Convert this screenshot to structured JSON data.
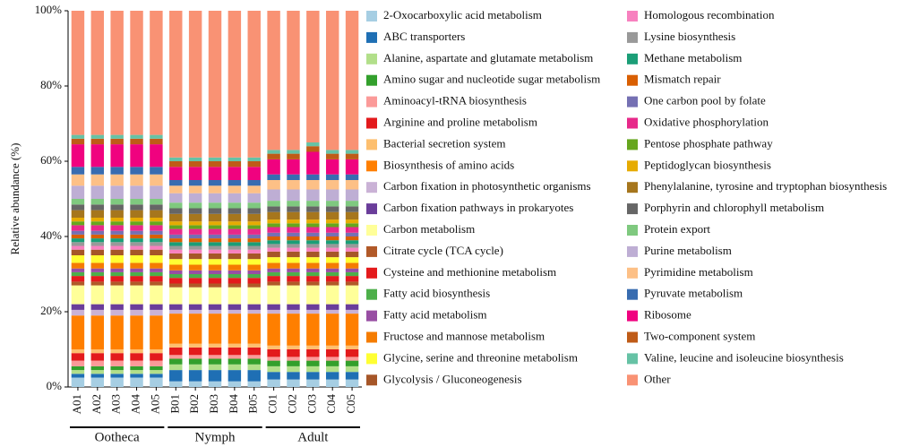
{
  "chart_data": {
    "type": "stacked_bar",
    "y_label": "Relative abundance (%)",
    "categories": [
      "A01",
      "A02",
      "A03",
      "A04",
      "A05",
      "B01",
      "B02",
      "B03",
      "B04",
      "B05",
      "C01",
      "C02",
      "C03",
      "C04",
      "C05"
    ],
    "groups": [
      "Ootheca",
      "Ootheca",
      "Ootheca",
      "Ootheca",
      "Ootheca",
      "Nymph",
      "Nymph",
      "Nymph",
      "Nymph",
      "Nymph",
      "Adult",
      "Adult",
      "Adult",
      "Adult",
      "Adult"
    ],
    "ylim": [
      0,
      100
    ],
    "yticks": [
      {
        "value": 0,
        "label": "0%"
      },
      {
        "value": 20,
        "label": "20%"
      },
      {
        "value": 40,
        "label": "40%"
      },
      {
        "value": 60,
        "label": "60%"
      },
      {
        "value": 80,
        "label": "80%"
      },
      {
        "value": 100,
        "label": "100%"
      }
    ],
    "series": [
      {
        "name": "2-Oxocarboxylic acid metabolism",
        "color": "#a6cee3",
        "values": [
          2.5,
          2.5,
          2.5,
          2.5,
          2.5,
          1.5,
          1.5,
          1.5,
          1.5,
          1.5,
          2,
          2,
          2,
          2,
          2
        ]
      },
      {
        "name": "ABC transporters",
        "color": "#1f6fb4",
        "values": [
          1,
          1,
          1,
          1,
          1,
          3,
          3,
          3,
          3,
          3,
          2,
          2,
          2,
          2,
          2
        ]
      },
      {
        "name": "Alanine, aspartate and glutamate metabolism",
        "color": "#b2df8a",
        "values": [
          1,
          1,
          1,
          1,
          1,
          1.5,
          1.5,
          1.5,
          1.5,
          1.5,
          1.5,
          1.5,
          1.5,
          1.5,
          1.5
        ]
      },
      {
        "name": "Amino sugar and nucleotide sugar metabolism",
        "color": "#33a02c",
        "values": [
          1,
          1,
          1,
          1,
          1,
          1.5,
          1.5,
          1.5,
          1.5,
          1.5,
          1.5,
          1.5,
          1.5,
          1.5,
          1.5
        ]
      },
      {
        "name": "Aminoacyl-tRNA biosynthesis",
        "color": "#fb9a99",
        "values": [
          1.5,
          1.5,
          1.5,
          1.5,
          1.5,
          1,
          1,
          1,
          1,
          1,
          1,
          1,
          1,
          1,
          1
        ]
      },
      {
        "name": "Arginine and proline metabolism",
        "color": "#e31a1c",
        "values": [
          2,
          2,
          2,
          2,
          2,
          2,
          2,
          2,
          2,
          2,
          2,
          2,
          2,
          2,
          2
        ]
      },
      {
        "name": "Bacterial secretion system",
        "color": "#fdbf6f",
        "values": [
          1,
          1,
          1,
          1,
          1,
          1,
          1,
          1,
          1,
          1,
          1,
          1,
          1,
          1,
          1
        ]
      },
      {
        "name": "Biosynthesis of amino acids",
        "color": "#ff7f00",
        "values": [
          9,
          9,
          9,
          9,
          9,
          8,
          8,
          8,
          8,
          8,
          8.5,
          8.5,
          8.5,
          8.5,
          8.5
        ]
      },
      {
        "name": "Carbon fixation in photosynthetic organisms",
        "color": "#cab2d6",
        "values": [
          1.5,
          1.5,
          1.5,
          1.5,
          1.5,
          1,
          1,
          1,
          1,
          1,
          1,
          1,
          1,
          1,
          1
        ]
      },
      {
        "name": "Carbon fixation pathways in prokaryotes",
        "color": "#6a3d9a",
        "values": [
          1.5,
          1.5,
          1.5,
          1.5,
          1.5,
          1.5,
          1.5,
          1.5,
          1.5,
          1.5,
          1.5,
          1.5,
          1.5,
          1.5,
          1.5
        ]
      },
      {
        "name": "Carbon metabolism",
        "color": "#ffff99",
        "values": [
          5,
          5,
          5,
          5,
          5,
          4.5,
          4.5,
          4.5,
          4.5,
          4.5,
          5,
          5,
          5,
          5,
          5
        ]
      },
      {
        "name": "Citrate cycle (TCA cycle)",
        "color": "#b15928",
        "values": [
          1,
          1,
          1,
          1,
          1,
          1,
          1,
          1,
          1,
          1,
          1,
          1,
          1,
          1,
          1
        ]
      },
      {
        "name": "Cysteine and methionine metabolism",
        "color": "#e41a1c",
        "values": [
          1.5,
          1.5,
          1.5,
          1.5,
          1.5,
          1.5,
          1.5,
          1.5,
          1.5,
          1.5,
          1.5,
          1.5,
          1.5,
          1.5,
          1.5
        ]
      },
      {
        "name": "Fatty acid biosynthesis",
        "color": "#4daf4a",
        "values": [
          1,
          1,
          1,
          1,
          1,
          1,
          1,
          1,
          1,
          1,
          1,
          1,
          1,
          1,
          1
        ]
      },
      {
        "name": "Fatty acid metabolism",
        "color": "#984ea3",
        "values": [
          1,
          1,
          1,
          1,
          1,
          1,
          1,
          1,
          1,
          1,
          1,
          1,
          1,
          1,
          1
        ]
      },
      {
        "name": "Fructose and mannose metabolism",
        "color": "#f57c00",
        "values": [
          1.5,
          1.5,
          1.5,
          1.5,
          1.5,
          1.5,
          1.5,
          1.5,
          1.5,
          1.5,
          1.5,
          1.5,
          1.5,
          1.5,
          1.5
        ]
      },
      {
        "name": "Glycine, serine and threonine metabolism",
        "color": "#ffff33",
        "values": [
          2,
          2,
          2,
          2,
          2,
          1.5,
          1.5,
          1.5,
          1.5,
          1.5,
          1.5,
          1.5,
          1.5,
          1.5,
          1.5
        ]
      },
      {
        "name": "Glycolysis / Gluconeogenesis",
        "color": "#a65628",
        "values": [
          1.5,
          1.5,
          1.5,
          1.5,
          1.5,
          1.5,
          1.5,
          1.5,
          1.5,
          1.5,
          1.5,
          1.5,
          1.5,
          1.5,
          1.5
        ]
      },
      {
        "name": "Homologous recombination",
        "color": "#f781bf",
        "values": [
          1,
          1,
          1,
          1,
          1,
          1,
          1,
          1,
          1,
          1,
          1,
          1,
          1,
          1,
          1
        ]
      },
      {
        "name": "Lysine biosynthesis",
        "color": "#999999",
        "values": [
          1,
          1,
          1,
          1,
          1,
          1,
          1,
          1,
          1,
          1,
          1,
          1,
          1,
          1,
          1
        ]
      },
      {
        "name": "Methane metabolism",
        "color": "#1b9e77",
        "values": [
          1,
          1,
          1,
          1,
          1,
          1,
          1,
          1,
          1,
          1,
          1,
          1,
          1,
          1,
          1
        ]
      },
      {
        "name": "Mismatch repair",
        "color": "#d95f02",
        "values": [
          1,
          1,
          1,
          1,
          1,
          1,
          1,
          1,
          1,
          1,
          1,
          1,
          1,
          1,
          1
        ]
      },
      {
        "name": "One carbon pool by folate",
        "color": "#7570b3",
        "values": [
          1,
          1,
          1,
          1,
          1,
          1,
          1,
          1,
          1,
          1,
          1,
          1,
          1,
          1,
          1
        ]
      },
      {
        "name": "Oxidative phosphorylation",
        "color": "#e7298a",
        "values": [
          1.5,
          1.5,
          1.5,
          1.5,
          1.5,
          1.5,
          1.5,
          1.5,
          1.5,
          1.5,
          1.5,
          1.5,
          1.5,
          1.5,
          1.5
        ]
      },
      {
        "name": "Pentose phosphate pathway",
        "color": "#66a61e",
        "values": [
          1,
          1,
          1,
          1,
          1,
          1,
          1,
          1,
          1,
          1,
          1,
          1,
          1,
          1,
          1
        ]
      },
      {
        "name": "Peptidoglycan biosynthesis",
        "color": "#e6ab02",
        "values": [
          1,
          1,
          1,
          1,
          1,
          1,
          1,
          1,
          1,
          1,
          1,
          1,
          1,
          1,
          1
        ]
      },
      {
        "name": "Phenylalanine, tyrosine and tryptophan biosynthesis",
        "color": "#a6761d",
        "values": [
          2,
          2,
          2,
          2,
          2,
          2,
          2,
          2,
          2,
          2,
          2,
          2,
          2,
          2,
          2
        ]
      },
      {
        "name": "Porphyrin and chlorophyll metabolism",
        "color": "#666666",
        "values": [
          1.5,
          1.5,
          1.5,
          1.5,
          1.5,
          1.5,
          1.5,
          1.5,
          1.5,
          1.5,
          1.5,
          1.5,
          1.5,
          1.5,
          1.5
        ]
      },
      {
        "name": "Protein export",
        "color": "#7fc97f",
        "values": [
          1.5,
          1.5,
          1.5,
          1.5,
          1.5,
          1.5,
          1.5,
          1.5,
          1.5,
          1.5,
          1.5,
          1.5,
          1.5,
          1.5,
          1.5
        ]
      },
      {
        "name": "Purine metabolism",
        "color": "#beaed4",
        "values": [
          3.5,
          3.5,
          3.5,
          3.5,
          3.5,
          2.5,
          2.5,
          2.5,
          2.5,
          2.5,
          3,
          3,
          3,
          3,
          3
        ]
      },
      {
        "name": "Pyrimidine metabolism",
        "color": "#fdc086",
        "values": [
          3,
          3,
          3,
          3,
          3,
          2,
          2,
          2,
          2,
          2,
          2.5,
          2.5,
          2.5,
          2.5,
          2.5
        ]
      },
      {
        "name": "Pyruvate metabolism",
        "color": "#386cb0",
        "values": [
          2,
          2,
          2,
          2,
          2,
          1.5,
          1.5,
          1.5,
          1.5,
          1.5,
          1.5,
          1.5,
          1.5,
          1.5,
          1.5
        ]
      },
      {
        "name": "Ribosome",
        "color": "#f0027f",
        "values": [
          6,
          6,
          6,
          6,
          6,
          3.5,
          3.5,
          3.5,
          3.5,
          3.5,
          4,
          4,
          6,
          4,
          4
        ]
      },
      {
        "name": "Two-component system",
        "color": "#bf5b17",
        "values": [
          1.5,
          1.5,
          1.5,
          1.5,
          1.5,
          1.5,
          1.5,
          1.5,
          1.5,
          1.5,
          1.5,
          1.5,
          1.5,
          1.5,
          1.5
        ]
      },
      {
        "name": "Valine, leucine and isoleucine biosynthesis",
        "color": "#66c2a5",
        "values": [
          1,
          1,
          1,
          1,
          1,
          1,
          1,
          1,
          1,
          1,
          1,
          1,
          1,
          1,
          1
        ]
      },
      {
        "name": "Other",
        "color": "#f99274",
        "values": [
          33,
          33,
          33,
          33,
          33,
          39,
          39,
          39,
          39,
          39,
          37,
          37,
          35,
          37,
          37
        ]
      }
    ]
  }
}
